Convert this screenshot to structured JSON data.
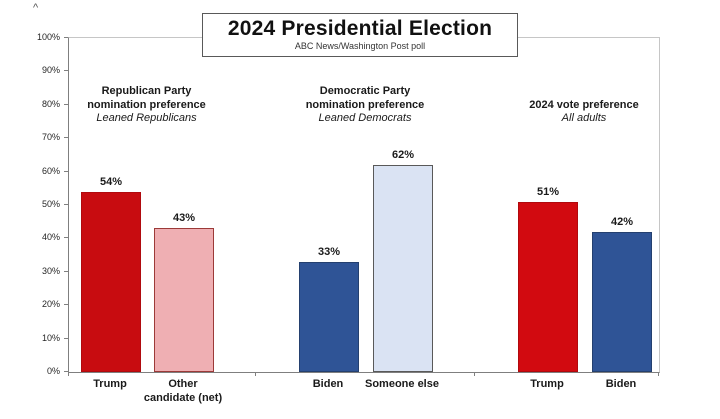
{
  "decor": {
    "top_left_mark": "^"
  },
  "chart_data": {
    "type": "bar",
    "title": "2024 Presidential Election",
    "subtitle": "ABC News/Washington Post poll",
    "ylabel": "",
    "xlabel": "",
    "ylim": [
      0,
      100
    ],
    "ytick_labels": [
      "0%",
      "10%",
      "20%",
      "30%",
      "40%",
      "50%",
      "60%",
      "70%",
      "80%",
      "90%",
      "100%"
    ],
    "grid": false,
    "legend_position": "none",
    "value_suffix": "%",
    "groups": [
      {
        "heading_lines": [
          "Republican Party",
          "nomination preference"
        ],
        "subheading": "Leaned Republicans",
        "bars": [
          {
            "category": "Trump",
            "category_lines": [
              "Trump"
            ],
            "value": 54,
            "label": "54%",
            "fill": "#c80c10",
            "border": "#b00a0e"
          },
          {
            "category": "Other candidate (net)",
            "category_lines": [
              "Other",
              "candidate (net)"
            ],
            "value": 43,
            "label": "43%",
            "fill": "#efafb3",
            "border": "#9c3a38"
          }
        ]
      },
      {
        "heading_lines": [
          "Democratic Party",
          "nomination preference"
        ],
        "subheading": "Leaned Democrats",
        "bars": [
          {
            "category": "Biden",
            "category_lines": [
              "Biden"
            ],
            "value": 33,
            "label": "33%",
            "fill": "#2f5496",
            "border": "#24406f"
          },
          {
            "category": "Someone else",
            "category_lines": [
              "Someone else"
            ],
            "value": 62,
            "label": "62%",
            "fill": "#dae3f3",
            "border": "#595959"
          }
        ]
      },
      {
        "heading_lines": [
          "2024 vote preference"
        ],
        "subheading": "All adults",
        "bars": [
          {
            "category": "Trump",
            "category_lines": [
              "Trump"
            ],
            "value": 51,
            "label": "51%",
            "fill": "#d20a10",
            "border": "#b0090d"
          },
          {
            "category": "Biden",
            "category_lines": [
              "Biden"
            ],
            "value": 42,
            "label": "42%",
            "fill": "#2f5496",
            "border": "#24406f"
          }
        ]
      }
    ]
  }
}
